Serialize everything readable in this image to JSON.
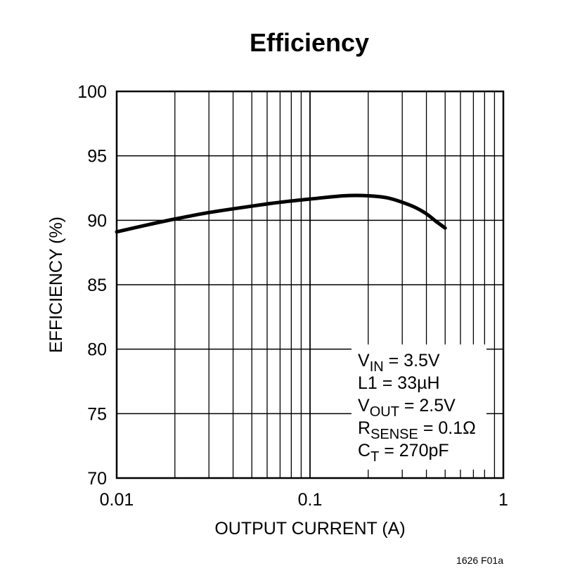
{
  "chart_data": {
    "type": "line",
    "title": "Efficiency",
    "xlabel": "OUTPUT CURRENT (A)",
    "ylabel": "EFFICIENCY (%)",
    "x_scale": "log",
    "xlim": [
      0.01,
      1
    ],
    "ylim": [
      70,
      100
    ],
    "x_ticks": [
      "0.01",
      "0.1",
      "1"
    ],
    "y_ticks": [
      "70",
      "75",
      "80",
      "85",
      "90",
      "95",
      "100"
    ],
    "grid": true,
    "series": [
      {
        "x": [
          0.01,
          0.015,
          0.02,
          0.03,
          0.05,
          0.07,
          0.1,
          0.15,
          0.2,
          0.25,
          0.3,
          0.35,
          0.4,
          0.45,
          0.5
        ],
        "y": [
          89.1,
          89.7,
          90.1,
          90.6,
          91.1,
          91.4,
          91.65,
          91.9,
          91.9,
          91.75,
          91.4,
          91.0,
          90.5,
          89.9,
          89.4
        ]
      }
    ],
    "conditions": [
      {
        "main": "V",
        "sub": "IN",
        "rest": " = 3.5V"
      },
      {
        "main": "L1 = 33µH",
        "sub": "",
        "rest": ""
      },
      {
        "main": "V",
        "sub": "OUT",
        "rest": " = 2.5V"
      },
      {
        "main": "R",
        "sub": "SENSE",
        "rest": " = 0.1Ω"
      },
      {
        "main": "C",
        "sub": "T",
        "rest": " = 270pF"
      }
    ],
    "figure_id": "1626 F01a"
  }
}
